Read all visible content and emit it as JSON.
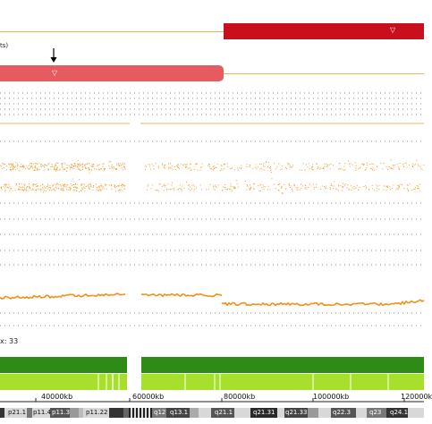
{
  "segment_track": {
    "top_bar_label": "▽",
    "second_bar_label": "▽",
    "left_fragment": "ts)",
    "colors": {
      "dark_red": "#c8101c",
      "light_red": "#e65b5f",
      "guide_line": "#e8b860"
    }
  },
  "count_label": "x: 33",
  "axis": {
    "ticks": [
      "40000kb",
      "60000kb",
      "80000kb",
      "100000kb",
      "120000k"
    ]
  },
  "ideogram": {
    "bands": [
      "p21.1",
      "p11.4",
      "p11.3",
      "p11.22",
      "q12",
      "q13.1",
      "q21.1",
      "q21.31",
      "q21.33",
      "q22.3",
      "q23",
      "q24.1"
    ]
  },
  "colors": {
    "scatter": "#f0a030",
    "line": "#f0901a",
    "dark_green": "#2e8b16",
    "light_green": "#a6e02a",
    "grid_dots": "#888888"
  }
}
